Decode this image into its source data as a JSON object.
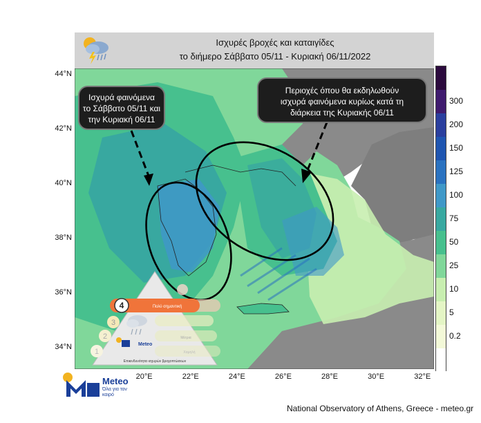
{
  "title": {
    "line1": "Ισχυρές βροχές και καταιγίδες",
    "line2": "το διήμερο Σάββατο 05/11 - Κυριακή 06/11/2022"
  },
  "header_icon": "rain-cloud-lightning-icon",
  "callouts": {
    "left": {
      "line1": "Ισχυρά φαινόμενα",
      "line2": "το Σάββατο 05/11 και",
      "line3": "την Κυριακή 06/11"
    },
    "right": {
      "line1": "Περιοχές όπου θα εκδηλωθούν",
      "line2": "ισχυρά φαινόμενα κυρίως κατά τη",
      "line3": "διάρκεια της Κυριακής 06/11"
    }
  },
  "axes": {
    "lat_labels": [
      "44°N",
      "42°N",
      "40°N",
      "38°N",
      "36°N",
      "34°N"
    ],
    "lat_values": [
      44,
      42,
      40,
      38,
      36,
      34
    ],
    "lon_labels": [
      "20°E",
      "22°E",
      "24°E",
      "26°E",
      "28°E",
      "30°E",
      "32°E"
    ],
    "lon_values": [
      20,
      22,
      24,
      26,
      28,
      30,
      32
    ],
    "lat_range": [
      33.2,
      44.2
    ],
    "lon_range": [
      17.0,
      32.5
    ]
  },
  "colorbar": {
    "ticks": [
      "300",
      "200",
      "150",
      "125",
      "100",
      "75",
      "50",
      "25",
      "10",
      "5",
      "0.2"
    ],
    "colors": [
      "#2b0a3d",
      "#3f1b6e",
      "#2a3f9e",
      "#1f55b0",
      "#2a72c0",
      "#3f98c8",
      "#38a8a0",
      "#47c08e",
      "#80d79a",
      "#c8eeb0",
      "#e4f5c5",
      "#f3f9d8",
      "#ffffff"
    ]
  },
  "colors": {
    "sea": "#ffffff",
    "land": "#8a8a8a",
    "header_bg": "#d3d3d3",
    "callout_bg": "#1d1d1d"
  },
  "inset": {
    "level4_number": "4",
    "level4_label": "Πολύ σημαντική",
    "levels_visible": [
      "4",
      "3",
      "2",
      "1"
    ],
    "faded_labels": [
      "Μέτρια",
      "Χαμηλή"
    ],
    "brand": "Meteo",
    "caption": "Επικινδυνότητα ισχυρών βροχοπτώσεων"
  },
  "logo": {
    "brand": "Meteo",
    "tagline": "Όλα για τον καιρό"
  },
  "credit": "National Observatory of Athens, Greece - meteo.gr"
}
